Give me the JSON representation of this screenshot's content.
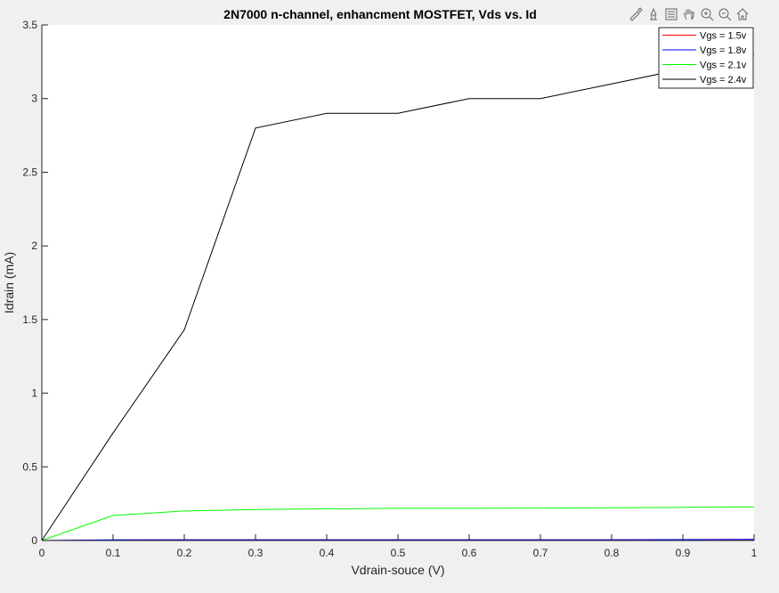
{
  "toolbar": {
    "icons": [
      "brush-icon",
      "data-tips-icon",
      "legend-icon",
      "pan-icon",
      "zoom-in-icon",
      "zoom-out-icon",
      "home-icon"
    ]
  },
  "colors": {
    "figure_bg": "#f0f0f0",
    "axes_bg": "#ffffff"
  },
  "chart_data": {
    "type": "line",
    "title": "2N7000 n-channel, enhancment MOSTFET, Vds vs. Id",
    "xlabel": "Vdrain-souce (V)",
    "ylabel": "Idrain (mA)",
    "xlim": [
      0,
      1
    ],
    "ylim": [
      0,
      3.5
    ],
    "xticks": [
      0,
      0.1,
      0.2,
      0.3,
      0.4,
      0.5,
      0.6,
      0.7,
      0.8,
      0.9,
      1
    ],
    "xtick_labels": [
      "0",
      "0.1",
      "0.2",
      "0.3",
      "0.4",
      "0.5",
      "0.6",
      "0.7",
      "0.8",
      "0.9",
      "1"
    ],
    "yticks": [
      0,
      0.5,
      1,
      1.5,
      2,
      2.5,
      3,
      3.5
    ],
    "ytick_labels": [
      "0",
      "0.5",
      "1",
      "1.5",
      "2",
      "2.5",
      "3",
      "3.5"
    ],
    "grid": false,
    "legend_position": "top-right",
    "series": [
      {
        "name": "Vgs = 1.5v",
        "color": "#ff0000",
        "x": [
          0,
          0.1,
          0.2,
          0.3,
          0.4,
          0.5,
          0.6,
          0.7,
          0.8,
          0.9,
          1
        ],
        "y": [
          0,
          0.003,
          0.004,
          0.004,
          0.004,
          0.004,
          0.004,
          0.004,
          0.004,
          0.004,
          0.005
        ]
      },
      {
        "name": "Vgs = 1.8v",
        "color": "#0000ff",
        "x": [
          0,
          0.1,
          0.2,
          0.3,
          0.4,
          0.5,
          0.6,
          0.7,
          0.8,
          0.9,
          1
        ],
        "y": [
          0,
          0.004,
          0.005,
          0.005,
          0.005,
          0.005,
          0.005,
          0.005,
          0.005,
          0.006,
          0.008
        ]
      },
      {
        "name": "Vgs = 2.1v",
        "color": "#00ff00",
        "x": [
          0,
          0.1,
          0.2,
          0.3,
          0.4,
          0.5,
          0.6,
          0.7,
          0.8,
          0.9,
          1
        ],
        "y": [
          0,
          0.17,
          0.2,
          0.21,
          0.215,
          0.218,
          0.218,
          0.22,
          0.222,
          0.225,
          0.228
        ]
      },
      {
        "name": "Vgs = 2.4v",
        "color": "#000000",
        "x": [
          0,
          0.1,
          0.2,
          0.3,
          0.4,
          0.5,
          0.6,
          0.7,
          0.8,
          0.9,
          1
        ],
        "y": [
          0,
          0.73,
          1.43,
          2.8,
          2.9,
          2.9,
          3.0,
          3.0,
          3.1,
          3.2,
          3.3
        ]
      }
    ]
  }
}
